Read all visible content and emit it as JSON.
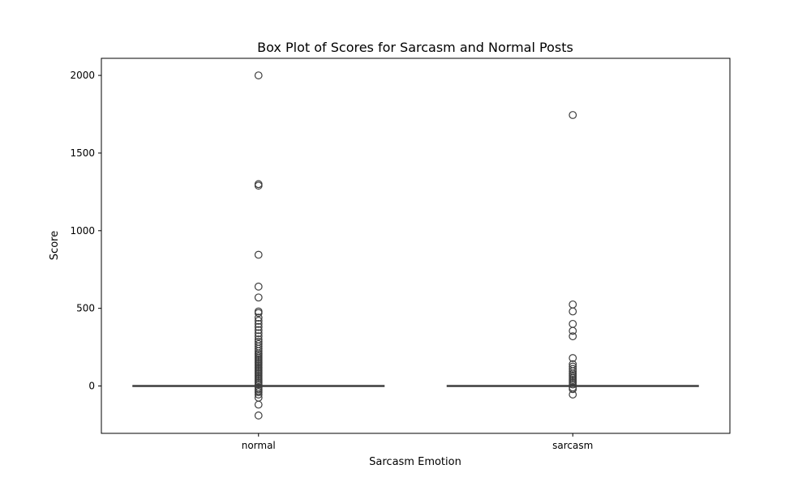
{
  "chart_data": {
    "type": "box",
    "title": "Box Plot of Scores for Sarcasm and Normal Posts",
    "xlabel": "Sarcasm Emotion",
    "ylabel": "Score",
    "ylim": [
      -305,
      2110
    ],
    "yticks": [
      0,
      500,
      1000,
      1500,
      2000
    ],
    "categories": [
      "normal",
      "sarcasm"
    ],
    "grid": false,
    "colors": {
      "box": "#3d3d3d",
      "frame": "#000000"
    },
    "boxes": [
      {
        "category": "normal",
        "q1": 0,
        "median": 0,
        "q3": 0,
        "whisker_low": 0,
        "whisker_high": 0,
        "outliers": [
          2000,
          1300,
          1290,
          845,
          640,
          570,
          480,
          470,
          440,
          420,
          400,
          380,
          360,
          340,
          320,
          300,
          285,
          270,
          255,
          240,
          225,
          210,
          200,
          190,
          180,
          170,
          160,
          150,
          140,
          130,
          120,
          110,
          100,
          90,
          80,
          70,
          60,
          50,
          40,
          30,
          20,
          10,
          -10,
          -20,
          -30,
          -40,
          -55,
          -75,
          -120,
          -190
        ]
      },
      {
        "category": "sarcasm",
        "q1": 0,
        "median": 0,
        "q3": 0,
        "whisker_low": 0,
        "whisker_high": 0,
        "outliers": [
          1745,
          525,
          480,
          400,
          355,
          320,
          180,
          140,
          125,
          110,
          95,
          80,
          70,
          60,
          50,
          40,
          30,
          20,
          10,
          -10,
          -20,
          -55
        ]
      }
    ]
  }
}
